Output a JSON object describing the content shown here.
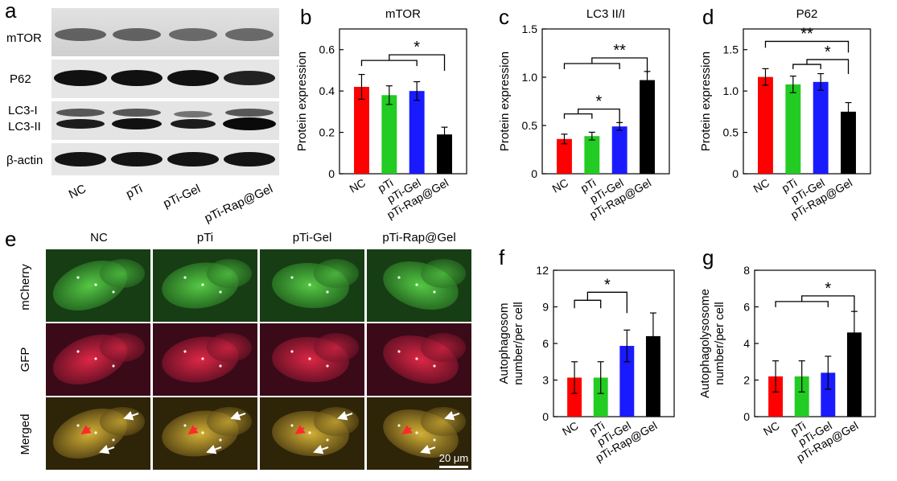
{
  "panels": {
    "a": "a",
    "b": "b",
    "c": "c",
    "d": "d",
    "e": "e",
    "f": "f",
    "g": "g"
  },
  "blot": {
    "bands": [
      "mTOR",
      "P62",
      "LC3-I",
      "LC3-II",
      "β-actin"
    ],
    "lanes": [
      "NC",
      "pTi",
      "pTi-Gel",
      "pTi-Rap@Gel"
    ]
  },
  "micrographs": {
    "columns": [
      "NC",
      "pTi",
      "pTi-Gel",
      "pTi-Rap@Gel"
    ],
    "rows": [
      "mCherry",
      "GFP",
      "Merged"
    ],
    "scale_bar": "20 μm",
    "colors": {
      "mCherry": "#2f8a2b",
      "GFP": "#b0183c",
      "Merged": "#a88a2a",
      "arrow_red": "#ff2a2a",
      "arrow_white": "#ffffff"
    }
  },
  "colors": {
    "NC": "#ff0000",
    "pTi": "#22cc22",
    "pTi-Gel": "#1a1aff",
    "pTi-Rap@Gel": "#000000"
  },
  "chart_data": [
    {
      "id": "b",
      "type": "bar",
      "title": "mTOR",
      "categories": [
        "NC",
        "pTi",
        "pTi-Gel",
        "pTi-Rap@Gel"
      ],
      "values": [
        0.42,
        0.38,
        0.4,
        0.19
      ],
      "errors": [
        0.06,
        0.045,
        0.045,
        0.035
      ],
      "ylabel": "Protein expression",
      "ylim": [
        0,
        0.7
      ],
      "yticks": [
        "0",
        "0.2",
        "0.4",
        "0.6"
      ],
      "significance": [
        {
          "label": "*"
        }
      ]
    },
    {
      "id": "c",
      "type": "bar",
      "title": "LC3 II/I",
      "categories": [
        "NC",
        "pTi",
        "pTi-Gel",
        "pTi-Rap@Gel"
      ],
      "values": [
        0.36,
        0.39,
        0.49,
        0.97
      ],
      "errors": [
        0.05,
        0.04,
        0.04,
        0.09
      ],
      "ylabel": "Protein expression",
      "ylim": [
        0,
        1.5
      ],
      "yticks": [
        "0",
        "0.5",
        "1.0",
        "1.5"
      ],
      "significance": [
        {
          "label": "*"
        },
        {
          "label": "**"
        }
      ]
    },
    {
      "id": "d",
      "type": "bar",
      "title": "P62",
      "categories": [
        "NC",
        "pTi",
        "pTi-Gel",
        "pTi-Rap@Gel"
      ],
      "values": [
        1.17,
        1.08,
        1.11,
        0.75
      ],
      "errors": [
        0.1,
        0.1,
        0.1,
        0.11
      ],
      "ylabel": "Protein expression",
      "ylim": [
        0,
        1.75
      ],
      "yticks": [
        "0",
        "0.5",
        "1.0",
        "1.5"
      ],
      "significance": [
        {
          "label": "**"
        },
        {
          "label": "*"
        }
      ]
    },
    {
      "id": "f",
      "type": "bar",
      "categories": [
        "NC",
        "pTi",
        "pTi-Gel",
        "pTi-Rap@Gel"
      ],
      "values": [
        3.2,
        3.2,
        5.8,
        6.6
      ],
      "errors": [
        1.3,
        1.3,
        1.3,
        1.9
      ],
      "ylabel_lines": [
        "Autophagosom",
        "number/per cell"
      ],
      "ylim": [
        0,
        12
      ],
      "yticks": [
        "0",
        "3",
        "6",
        "9",
        "12"
      ],
      "significance": [
        {
          "label": "*"
        }
      ]
    },
    {
      "id": "g",
      "type": "bar",
      "categories": [
        "NC",
        "pTi",
        "pTi-Gel",
        "pTi-Rap@Gel"
      ],
      "values": [
        2.2,
        2.2,
        2.4,
        4.6
      ],
      "errors": [
        0.85,
        0.85,
        0.9,
        1.15
      ],
      "ylabel_lines": [
        "Autophagolysosome",
        "number/per cell"
      ],
      "ylim": [
        0,
        8
      ],
      "yticks": [
        "0",
        "2",
        "4",
        "6",
        "8"
      ],
      "significance": [
        {
          "label": "*"
        }
      ]
    }
  ]
}
